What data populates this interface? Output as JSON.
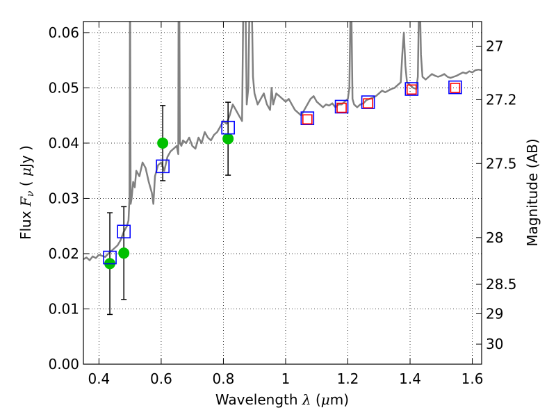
{
  "chart_data": {
    "type": "scatter",
    "title": "",
    "xlabel": "Wavelength",
    "xlabel_symbol": "λ",
    "xlabel_unit_open": "(",
    "xlabel_unit_mu": "μ",
    "xlabel_unit_rest": "m)",
    "ylabel": "Flux",
    "ylabel_symbol": "F",
    "ylabel_subscript": "ν",
    "ylabel_unit_open": "(",
    "ylabel_unit_mu": "μ",
    "ylabel_unit_rest": "Jy )",
    "ylabel_right": "Magnitude (AB)",
    "xlim": [
      0.35,
      1.63
    ],
    "ylim": [
      0.0,
      0.062
    ],
    "grid": true,
    "x_ticks": [
      {
        "value": 0.4,
        "label": "0.4"
      },
      {
        "value": 0.6,
        "label": "0.6"
      },
      {
        "value": 0.8,
        "label": "0.8"
      },
      {
        "value": 1.0,
        "label": "1"
      },
      {
        "value": 1.2,
        "label": "1.2"
      },
      {
        "value": 1.4,
        "label": "1.4"
      },
      {
        "value": 1.6,
        "label": "1.6"
      }
    ],
    "y_ticks": [
      {
        "value": 0.0,
        "label": "0.00"
      },
      {
        "value": 0.01,
        "label": "0.01"
      },
      {
        "value": 0.02,
        "label": "0.02"
      },
      {
        "value": 0.03,
        "label": "0.03"
      },
      {
        "value": 0.04,
        "label": "0.04"
      },
      {
        "value": 0.05,
        "label": "0.05"
      },
      {
        "value": 0.06,
        "label": "0.06"
      }
    ],
    "right_ticks": [
      {
        "value": 27,
        "label": "27"
      },
      {
        "value": 27.2,
        "label": "27.2"
      },
      {
        "value": 27.5,
        "label": "27.5"
      },
      {
        "value": 28,
        "label": "28"
      },
      {
        "value": 28.5,
        "label": "28.5"
      },
      {
        "value": 29,
        "label": "29"
      },
      {
        "value": 30,
        "label": "30"
      }
    ],
    "spectrum": {
      "color": "#808080",
      "x": [
        0.35,
        0.36,
        0.37,
        0.38,
        0.39,
        0.4,
        0.41,
        0.42,
        0.43,
        0.44,
        0.45,
        0.46,
        0.47,
        0.48,
        0.49,
        0.495,
        0.498,
        0.5,
        0.502,
        0.505,
        0.51,
        0.515,
        0.52,
        0.53,
        0.54,
        0.55,
        0.56,
        0.57,
        0.575,
        0.58,
        0.59,
        0.6,
        0.61,
        0.62,
        0.63,
        0.64,
        0.65,
        0.655,
        0.656,
        0.658,
        0.66,
        0.665,
        0.67,
        0.68,
        0.69,
        0.7,
        0.71,
        0.72,
        0.73,
        0.74,
        0.75,
        0.76,
        0.77,
        0.78,
        0.79,
        0.8,
        0.81,
        0.82,
        0.83,
        0.84,
        0.85,
        0.86,
        0.865,
        0.87,
        0.875,
        0.88,
        0.885,
        0.89,
        0.895,
        0.9,
        0.91,
        0.92,
        0.93,
        0.94,
        0.95,
        0.955,
        0.96,
        0.965,
        0.97,
        0.98,
        0.99,
        1.0,
        1.01,
        1.02,
        1.03,
        1.04,
        1.05,
        1.06,
        1.07,
        1.08,
        1.09,
        1.1,
        1.11,
        1.12,
        1.13,
        1.14,
        1.15,
        1.16,
        1.17,
        1.18,
        1.19,
        1.2,
        1.205,
        1.21,
        1.215,
        1.22,
        1.23,
        1.24,
        1.25,
        1.26,
        1.27,
        1.28,
        1.29,
        1.3,
        1.31,
        1.32,
        1.33,
        1.34,
        1.35,
        1.36,
        1.37,
        1.375,
        1.38,
        1.385,
        1.39,
        1.4,
        1.41,
        1.42,
        1.425,
        1.43,
        1.435,
        1.44,
        1.45,
        1.46,
        1.47,
        1.48,
        1.49,
        1.5,
        1.51,
        1.52,
        1.53,
        1.54,
        1.55,
        1.56,
        1.57,
        1.58,
        1.59,
        1.6,
        1.61,
        1.62,
        1.63
      ],
      "y": [
        0.019,
        0.0193,
        0.0188,
        0.0195,
        0.0192,
        0.0198,
        0.0196,
        0.0194,
        0.02,
        0.0205,
        0.021,
        0.0215,
        0.0225,
        0.024,
        0.025,
        0.026,
        0.03,
        0.07,
        0.029,
        0.03,
        0.033,
        0.032,
        0.035,
        0.034,
        0.0365,
        0.0355,
        0.033,
        0.031,
        0.029,
        0.034,
        0.036,
        0.0365,
        0.035,
        0.0375,
        0.0385,
        0.039,
        0.0395,
        0.038,
        0.07,
        0.07,
        0.04,
        0.0395,
        0.0405,
        0.04,
        0.041,
        0.0395,
        0.039,
        0.041,
        0.04,
        0.042,
        0.041,
        0.0405,
        0.0415,
        0.042,
        0.043,
        0.044,
        0.0435,
        0.045,
        0.047,
        0.046,
        0.045,
        0.044,
        0.07,
        0.07,
        0.047,
        0.05,
        0.07,
        0.07,
        0.052,
        0.049,
        0.047,
        0.048,
        0.049,
        0.047,
        0.046,
        0.05,
        0.047,
        0.048,
        0.049,
        0.0485,
        0.048,
        0.0475,
        0.048,
        0.047,
        0.046,
        0.0455,
        0.045,
        0.046,
        0.047,
        0.048,
        0.0485,
        0.0475,
        0.047,
        0.0465,
        0.047,
        0.0468,
        0.0472,
        0.0465,
        0.047,
        0.047,
        0.0475,
        0.048,
        0.05,
        0.07,
        0.048,
        0.047,
        0.0465,
        0.047,
        0.0472,
        0.0478,
        0.048,
        0.0482,
        0.0485,
        0.049,
        0.0495,
        0.0492,
        0.0495,
        0.0498,
        0.05,
        0.0505,
        0.051,
        0.056,
        0.06,
        0.054,
        0.051,
        0.0505,
        0.05,
        0.0498,
        0.052,
        0.07,
        0.056,
        0.052,
        0.0515,
        0.052,
        0.0525,
        0.0522,
        0.052,
        0.0522,
        0.0525,
        0.052,
        0.0518,
        0.052,
        0.0522,
        0.0525,
        0.0528,
        0.0526,
        0.053,
        0.0528,
        0.0532,
        0.0533,
        0.0532
      ]
    },
    "series": [
      {
        "marker": "circle",
        "color": "#00c000",
        "x": [
          0.435,
          0.48,
          0.605,
          0.815
        ],
        "y": [
          0.0182,
          0.0201,
          0.04,
          0.0408
        ],
        "err": [
          0.0092,
          0.0084,
          0.0068,
          0.0066
        ]
      },
      {
        "marker": "open-square",
        "color": "#0000ff",
        "x": [
          0.435,
          0.48,
          0.605,
          0.815,
          1.07,
          1.18,
          1.265,
          1.405,
          1.545
        ],
        "y": [
          0.0193,
          0.024,
          0.0358,
          0.0428,
          0.0445,
          0.0466,
          0.0474,
          0.0498,
          0.0501
        ]
      },
      {
        "marker": "open-square",
        "color": "#ff0000",
        "x": [
          1.07,
          1.18,
          1.265,
          1.405,
          1.545
        ],
        "y": [
          0.0443,
          0.0464,
          0.0472,
          0.0497,
          0.05
        ]
      }
    ]
  }
}
